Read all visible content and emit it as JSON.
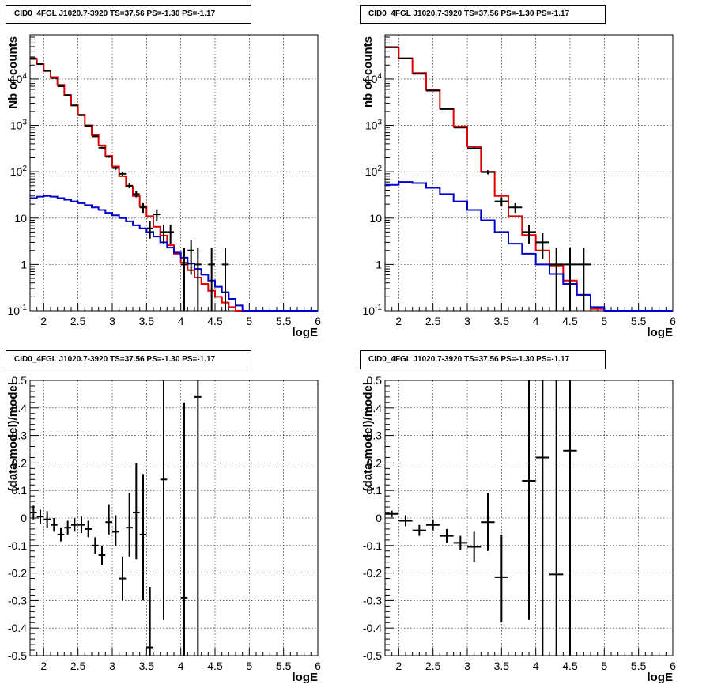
{
  "panels": [
    {
      "title": "CID0_4FGL J1020.7-3920 TS=37.56 PS=-1.30 PS=-1.17",
      "xlabel": "logE",
      "ylabel": "Nb of counts"
    },
    {
      "title": "CID0_4FGL J1020.7-3920 TS=37.56 PS=-1.30 PS=-1.17",
      "xlabel": "logE",
      "ylabel": "nb of counts"
    },
    {
      "title": "CID0_4FGL J1020.7-3920 TS=37.56 PS=-1.30 PS=-1.17",
      "xlabel": "logE",
      "ylabel": "(data-model)/model"
    },
    {
      "title": "CID0_4FGL J1020.7-3920 TS=37.56 PS=-1.30 PS=-1.17",
      "xlabel": "logE",
      "ylabel": "(data-model)/model"
    }
  ],
  "chart_data": [
    {
      "type": "line",
      "title": "CID0_4FGL J1020.7-3920 TS=37.56 PS=-1.30 PS=-1.17",
      "xlabel": "logE",
      "ylabel": "Nb of counts",
      "xlim": [
        1.8,
        6.0
      ],
      "ylim": [
        0.1,
        90000
      ],
      "yscale": "log",
      "grid": true,
      "x_ticks": [
        "2",
        "2.5",
        "3",
        "3.5",
        "4",
        "4.5",
        "5",
        "5.5",
        "6"
      ],
      "y_ticks": [
        "10^-1",
        "1",
        "10",
        "10^2",
        "10^3",
        "10^4"
      ],
      "bin_edges": [
        1.8,
        1.9,
        2.0,
        2.1,
        2.2,
        2.3,
        2.4,
        2.5,
        2.6,
        2.7,
        2.8,
        2.9,
        3.0,
        3.1,
        3.2,
        3.3,
        3.4,
        3.5,
        3.6,
        3.7,
        3.8,
        3.9,
        4.0,
        4.1,
        4.2,
        4.3,
        4.4,
        4.5,
        4.6,
        4.7,
        4.8,
        4.9,
        5.0,
        5.1,
        5.2,
        5.3,
        5.4,
        5.5,
        5.6,
        5.7,
        5.8,
        5.9,
        6.0
      ],
      "series": [
        {
          "color": "#e00000",
          "kind": "step",
          "values": [
            27000,
            21000,
            15000,
            11000,
            7500,
            4500,
            2700,
            1700,
            1000,
            620,
            370,
            220,
            130,
            80,
            48,
            30,
            18,
            11,
            6.5,
            4.2,
            2.6,
            1.7,
            1.1,
            0.75,
            0.52,
            0.38,
            0.27,
            0.2,
            0.15,
            0.12,
            0.1,
            0.1,
            0.1,
            0.1,
            0.1,
            0.1,
            0.1,
            0.1,
            0.1,
            0.1,
            0.1,
            0.1
          ]
        },
        {
          "color": "#0000cc",
          "kind": "step",
          "values": [
            27,
            29,
            30,
            29,
            27,
            25,
            23,
            21,
            19,
            17,
            15,
            13,
            11.5,
            10,
            8.5,
            7,
            6,
            5,
            4,
            3,
            2.3,
            1.8,
            1.4,
            1.05,
            0.8,
            0.6,
            0.45,
            0.33,
            0.25,
            0.18,
            0.13,
            0.1,
            0.1,
            0.1,
            0.1,
            0.1,
            0.1,
            0.1,
            0.1,
            0.1,
            0.1,
            0.1
          ]
        },
        {
          "color": "#000000",
          "kind": "errorbar",
          "points": [
            {
              "x": 1.85,
              "y": 28000,
              "lo": 27500,
              "hi": 28500
            },
            {
              "x": 1.95,
              "y": 21000,
              "lo": 20600,
              "hi": 21400
            },
            {
              "x": 2.05,
              "y": 15000,
              "lo": 14700,
              "hi": 15300
            },
            {
              "x": 2.15,
              "y": 10500,
              "lo": 10300,
              "hi": 10700
            },
            {
              "x": 2.25,
              "y": 7000,
              "lo": 6850,
              "hi": 7150
            },
            {
              "x": 2.35,
              "y": 4500,
              "lo": 4400,
              "hi": 4600
            },
            {
              "x": 2.45,
              "y": 2700,
              "lo": 2640,
              "hi": 2760
            },
            {
              "x": 2.55,
              "y": 1650,
              "lo": 1610,
              "hi": 1690
            },
            {
              "x": 2.65,
              "y": 980,
              "lo": 950,
              "hi": 1010
            },
            {
              "x": 2.75,
              "y": 580,
              "lo": 560,
              "hi": 600
            },
            {
              "x": 2.85,
              "y": 330,
              "lo": 315,
              "hi": 345
            },
            {
              "x": 2.95,
              "y": 210,
              "lo": 200,
              "hi": 220
            },
            {
              "x": 3.05,
              "y": 120,
              "lo": 110,
              "hi": 130
            },
            {
              "x": 3.15,
              "y": 90,
              "lo": 82,
              "hi": 98
            },
            {
              "x": 3.25,
              "y": 50,
              "lo": 44,
              "hi": 57
            },
            {
              "x": 3.35,
              "y": 33,
              "lo": 28,
              "hi": 39
            },
            {
              "x": 3.45,
              "y": 17,
              "lo": 13,
              "hi": 21
            },
            {
              "x": 3.55,
              "y": 6,
              "lo": 3.6,
              "hi": 8.5
            },
            {
              "x": 3.65,
              "y": 12,
              "lo": 8.5,
              "hi": 15.5
            },
            {
              "x": 3.75,
              "y": 5,
              "lo": 2.8,
              "hi": 7.2
            },
            {
              "x": 3.85,
              "y": 5,
              "lo": 2.8,
              "hi": 7.2
            },
            {
              "x": 4.05,
              "y": 1,
              "lo": 0.1,
              "hi": 2.3
            },
            {
              "x": 4.15,
              "y": 2,
              "lo": 0.6,
              "hi": 3.4
            },
            {
              "x": 4.25,
              "y": 1,
              "lo": 0.1,
              "hi": 2.3
            },
            {
              "x": 4.45,
              "y": 1,
              "lo": 0.1,
              "hi": 2.3
            },
            {
              "x": 4.65,
              "y": 1,
              "lo": 0.1,
              "hi": 2.3
            }
          ]
        }
      ]
    },
    {
      "type": "line",
      "title": "CID0_4FGL J1020.7-3920 TS=37.56 PS=-1.30 PS=-1.17",
      "xlabel": "logE",
      "ylabel": "nb of counts",
      "xlim": [
        1.8,
        6.0
      ],
      "ylim": [
        0.1,
        90000
      ],
      "yscale": "log",
      "grid": true,
      "x_ticks": [
        "2",
        "2.5",
        "3",
        "3.5",
        "4",
        "4.5",
        "5",
        "5.5",
        "6"
      ],
      "y_ticks": [
        "10^-1",
        "1",
        "10",
        "10^2",
        "10^3",
        "10^4"
      ],
      "bin_edges": [
        1.8,
        2.0,
        2.2,
        2.4,
        2.6,
        2.8,
        3.0,
        3.2,
        3.4,
        3.6,
        3.8,
        4.0,
        4.2,
        4.4,
        4.6,
        4.8,
        5.0,
        5.2,
        5.4,
        5.6,
        5.8,
        6.0
      ],
      "series": [
        {
          "color": "#e00000",
          "kind": "step",
          "values": [
            48000,
            28000,
            13500,
            5800,
            2300,
            950,
            350,
            100,
            30,
            11,
            4.3,
            2.0,
            0.95,
            0.45,
            0.22,
            0.11,
            0.1,
            0.1,
            0.1,
            0.1,
            0.1
          ]
        },
        {
          "color": "#0000cc",
          "kind": "step",
          "values": [
            52,
            60,
            57,
            45,
            33,
            23,
            15,
            9,
            5,
            2.8,
            1.7,
            1.0,
            0.62,
            0.38,
            0.22,
            0.12,
            0.1,
            0.1,
            0.1,
            0.1,
            0.1
          ]
        },
        {
          "color": "#000000",
          "kind": "errorbar",
          "points": [
            {
              "x": 1.9,
              "y": 49000,
              "lo": 48600,
              "hi": 49400
            },
            {
              "x": 2.1,
              "y": 28000,
              "lo": 27700,
              "hi": 28300
            },
            {
              "x": 2.3,
              "y": 13000,
              "lo": 12800,
              "hi": 13200
            },
            {
              "x": 2.5,
              "y": 5650,
              "lo": 5550,
              "hi": 5750
            },
            {
              "x": 2.7,
              "y": 2250,
              "lo": 2200,
              "hi": 2300
            },
            {
              "x": 2.9,
              "y": 900,
              "lo": 870,
              "hi": 930
            },
            {
              "x": 3.1,
              "y": 320,
              "lo": 302,
              "hi": 338
            },
            {
              "x": 3.3,
              "y": 98,
              "lo": 88,
              "hi": 108
            },
            {
              "x": 3.5,
              "y": 23,
              "lo": 18,
              "hi": 28
            },
            {
              "x": 3.7,
              "y": 17,
              "lo": 13,
              "hi": 21
            },
            {
              "x": 3.9,
              "y": 5,
              "lo": 2.8,
              "hi": 7.2
            },
            {
              "x": 4.1,
              "y": 3,
              "lo": 1.3,
              "hi": 4.7
            },
            {
              "x": 4.3,
              "y": 1,
              "lo": 0.1,
              "hi": 2.3
            },
            {
              "x": 4.5,
              "y": 1,
              "lo": 0.1,
              "hi": 2.3
            },
            {
              "x": 4.7,
              "y": 1,
              "lo": 0.1,
              "hi": 2.3
            }
          ]
        }
      ]
    },
    {
      "type": "scatter",
      "title": "CID0_4FGL J1020.7-3920 TS=37.56 PS=-1.30 PS=-1.17",
      "xlabel": "logE",
      "ylabel": "(data-model)/model",
      "xlim": [
        1.8,
        6.0
      ],
      "ylim": [
        -0.5,
        0.5
      ],
      "grid": true,
      "x_ticks": [
        "2",
        "2.5",
        "3",
        "3.5",
        "4",
        "4.5",
        "5",
        "5.5",
        "6"
      ],
      "y_ticks": [
        "-0.5",
        "-0.4",
        "-0.3",
        "-0.2",
        "-0.1",
        "0",
        "0.1",
        "0.2",
        "0.3",
        "0.4",
        "0.5"
      ],
      "series": [
        {
          "color": "#000000",
          "kind": "errorbar",
          "xerr": 0.05,
          "points": [
            {
              "x": 1.85,
              "y": 0.02,
              "lo": -0.005,
              "hi": 0.045
            },
            {
              "x": 1.95,
              "y": 0.005,
              "lo": -0.02,
              "hi": 0.03
            },
            {
              "x": 2.05,
              "y": -0.005,
              "lo": -0.035,
              "hi": 0.025
            },
            {
              "x": 2.15,
              "y": -0.025,
              "lo": -0.05,
              "hi": 0.0
            },
            {
              "x": 2.25,
              "y": -0.06,
              "lo": -0.085,
              "hi": -0.035
            },
            {
              "x": 2.35,
              "y": -0.035,
              "lo": -0.06,
              "hi": -0.01
            },
            {
              "x": 2.45,
              "y": -0.025,
              "lo": -0.05,
              "hi": 0.0
            },
            {
              "x": 2.55,
              "y": -0.025,
              "lo": -0.055,
              "hi": 0.005
            },
            {
              "x": 2.65,
              "y": -0.04,
              "lo": -0.07,
              "hi": -0.01
            },
            {
              "x": 2.75,
              "y": -0.1,
              "lo": -0.13,
              "hi": -0.07
            },
            {
              "x": 2.85,
              "y": -0.135,
              "lo": -0.17,
              "hi": -0.1
            },
            {
              "x": 2.95,
              "y": -0.015,
              "lo": -0.06,
              "hi": 0.05
            },
            {
              "x": 3.05,
              "y": -0.05,
              "lo": -0.1,
              "hi": 0.01
            },
            {
              "x": 3.15,
              "y": -0.22,
              "lo": -0.3,
              "hi": -0.14
            },
            {
              "x": 3.25,
              "y": -0.035,
              "lo": -0.14,
              "hi": 0.09
            },
            {
              "x": 3.35,
              "y": 0.02,
              "lo": -0.15,
              "hi": 0.2
            },
            {
              "x": 3.45,
              "y": -0.06,
              "lo": -0.3,
              "hi": 0.16
            },
            {
              "x": 3.55,
              "y": -0.47,
              "lo": -0.5,
              "hi": -0.25
            },
            {
              "x": 3.75,
              "y": 0.14,
              "lo": -0.37,
              "hi": 0.5
            },
            {
              "x": 4.05,
              "y": -0.29,
              "lo": -0.5,
              "hi": 0.42
            },
            {
              "x": 4.25,
              "y": 0.44,
              "lo": -0.5,
              "hi": 0.5
            }
          ]
        }
      ]
    },
    {
      "type": "scatter",
      "title": "CID0_4FGL J1020.7-3920 TS=37.56 PS=-1.30 PS=-1.17",
      "xlabel": "logE",
      "ylabel": "(data-model)/model",
      "xlim": [
        1.8,
        6.0
      ],
      "ylim": [
        -0.5,
        0.5
      ],
      "grid": true,
      "x_ticks": [
        "2",
        "2.5",
        "3",
        "3.5",
        "4",
        "4.5",
        "5",
        "5.5",
        "6"
      ],
      "y_ticks": [
        "-0.5",
        "-0.4",
        "-0.3",
        "-0.2",
        "-0.1",
        "0",
        "0.1",
        "0.2",
        "0.3",
        "0.4",
        "0.5"
      ],
      "series": [
        {
          "color": "#000000",
          "kind": "errorbar",
          "xerr": 0.1,
          "points": [
            {
              "x": 1.9,
              "y": 0.015,
              "lo": 0.003,
              "hi": 0.027
            },
            {
              "x": 2.1,
              "y": -0.01,
              "lo": -0.03,
              "hi": 0.01
            },
            {
              "x": 2.3,
              "y": -0.045,
              "lo": -0.065,
              "hi": -0.025
            },
            {
              "x": 2.5,
              "y": -0.025,
              "lo": -0.045,
              "hi": -0.005
            },
            {
              "x": 2.7,
              "y": -0.065,
              "lo": -0.09,
              "hi": -0.04
            },
            {
              "x": 2.9,
              "y": -0.09,
              "lo": -0.115,
              "hi": -0.065
            },
            {
              "x": 3.1,
              "y": -0.105,
              "lo": -0.16,
              "hi": -0.05
            },
            {
              "x": 3.3,
              "y": -0.015,
              "lo": -0.12,
              "hi": 0.09
            },
            {
              "x": 3.5,
              "y": -0.215,
              "lo": -0.38,
              "hi": -0.06
            },
            {
              "x": 3.9,
              "y": 0.135,
              "lo": -0.37,
              "hi": 0.5
            },
            {
              "x": 4.1,
              "y": 0.22,
              "lo": -0.5,
              "hi": 0.5
            },
            {
              "x": 4.3,
              "y": -0.205,
              "lo": -0.5,
              "hi": 0.5
            },
            {
              "x": 4.5,
              "y": 0.245,
              "lo": -0.5,
              "hi": 0.5
            }
          ]
        }
      ]
    }
  ]
}
